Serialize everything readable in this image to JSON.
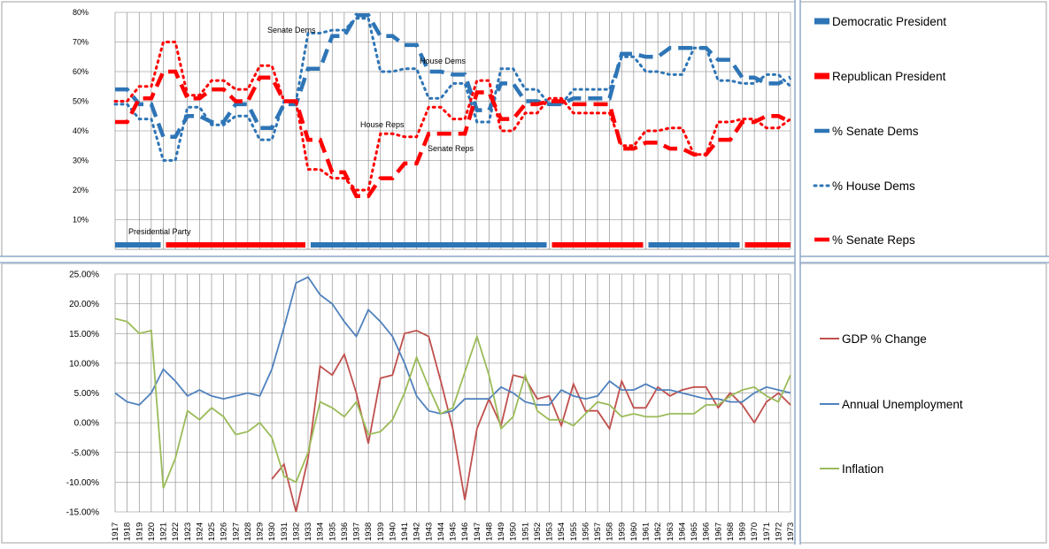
{
  "colors": {
    "dem": "#2E75B6",
    "rep": "#FF0000",
    "gdp": "#C0504D",
    "unemp": "#4F81BD",
    "infl": "#9BBB59",
    "grid": "#808080",
    "divider": "#8FA8C8"
  },
  "chart_data": [
    {
      "type": "line",
      "y_ticks": [
        "10%",
        "20%",
        "30%",
        "40%",
        "50%",
        "60%",
        "70%",
        "80%"
      ],
      "ylim": [
        0,
        0.8
      ],
      "grid": "on",
      "legend_position": "right",
      "legend": [
        {
          "label": "Democratic President",
          "style": "thick-solid",
          "color": "dem"
        },
        {
          "label": "Republican President",
          "style": "thick-solid",
          "color": "rep"
        },
        {
          "label": "% Senate Dems",
          "style": "dashed",
          "color": "dem"
        },
        {
          "label": "% House Dems",
          "style": "dotted",
          "color": "dem"
        },
        {
          "label": "% Senate Reps",
          "style": "dashed",
          "color": "rep"
        }
      ],
      "annotations": [
        "Senate Dems",
        "House Dems",
        "House Reps",
        "Senate Reps",
        "Presidential Party"
      ],
      "presidential_party": [
        {
          "party": "dem",
          "from": 1917,
          "to": 1920
        },
        {
          "party": "rep",
          "from": 1921,
          "to": 1932
        },
        {
          "party": "dem",
          "from": 1933,
          "to": 1952
        },
        {
          "party": "rep",
          "from": 1953,
          "to": 1960
        },
        {
          "party": "dem",
          "from": 1961,
          "to": 1968
        },
        {
          "party": "rep",
          "from": 1969,
          "to": 1973
        }
      ],
      "x": [
        1917,
        1918,
        1919,
        1920,
        1921,
        1922,
        1923,
        1924,
        1925,
        1926,
        1927,
        1928,
        1929,
        1930,
        1931,
        1932,
        1933,
        1934,
        1935,
        1936,
        1937,
        1938,
        1939,
        1940,
        1941,
        1942,
        1943,
        1944,
        1945,
        1946,
        1947,
        1948,
        1949,
        1950,
        1951,
        1952,
        1953,
        1954,
        1955,
        1956,
        1957,
        1958,
        1959,
        1960,
        1961,
        1962,
        1963,
        1964,
        1965,
        1966,
        1967,
        1968,
        1969,
        1970,
        1971,
        1972,
        1973
      ],
      "series": [
        {
          "name": "% Senate Dems",
          "color": "dem",
          "dash": "dashed",
          "values": [
            0.54,
            0.54,
            0.49,
            0.49,
            0.38,
            0.38,
            0.45,
            0.45,
            0.43,
            0.43,
            0.49,
            0.49,
            0.41,
            0.41,
            0.49,
            0.49,
            0.61,
            0.61,
            0.72,
            0.72,
            0.79,
            0.79,
            0.72,
            0.72,
            0.69,
            0.69,
            0.6,
            0.6,
            0.59,
            0.59,
            0.47,
            0.47,
            0.56,
            0.56,
            0.5,
            0.5,
            0.49,
            0.49,
            0.51,
            0.51,
            0.51,
            0.51,
            0.66,
            0.66,
            0.65,
            0.65,
            0.68,
            0.68,
            0.68,
            0.68,
            0.64,
            0.64,
            0.58,
            0.58,
            0.56,
            0.56,
            0.58
          ]
        },
        {
          "name": "% House Dems",
          "color": "dem",
          "dash": "dotted",
          "values": [
            0.49,
            0.49,
            0.44,
            0.44,
            0.3,
            0.3,
            0.48,
            0.48,
            0.42,
            0.42,
            0.45,
            0.45,
            0.37,
            0.37,
            0.5,
            0.5,
            0.73,
            0.73,
            0.74,
            0.74,
            0.78,
            0.78,
            0.6,
            0.6,
            0.61,
            0.61,
            0.51,
            0.51,
            0.56,
            0.56,
            0.43,
            0.43,
            0.61,
            0.61,
            0.54,
            0.54,
            0.49,
            0.49,
            0.54,
            0.54,
            0.54,
            0.54,
            0.65,
            0.65,
            0.6,
            0.6,
            0.59,
            0.59,
            0.68,
            0.68,
            0.57,
            0.57,
            0.56,
            0.56,
            0.59,
            0.59,
            0.55
          ]
        },
        {
          "name": "% Senate Reps",
          "color": "rep",
          "dash": "dashed",
          "values": [
            0.43,
            0.43,
            0.51,
            0.51,
            0.6,
            0.6,
            0.51,
            0.51,
            0.54,
            0.54,
            0.5,
            0.5,
            0.58,
            0.58,
            0.5,
            0.5,
            0.37,
            0.37,
            0.26,
            0.26,
            0.18,
            0.18,
            0.24,
            0.24,
            0.29,
            0.29,
            0.39,
            0.39,
            0.39,
            0.39,
            0.53,
            0.53,
            0.44,
            0.44,
            0.49,
            0.49,
            0.5,
            0.5,
            0.49,
            0.49,
            0.49,
            0.49,
            0.34,
            0.34,
            0.36,
            0.36,
            0.34,
            0.34,
            0.32,
            0.32,
            0.37,
            0.37,
            0.43,
            0.43,
            0.45,
            0.45,
            0.43
          ]
        },
        {
          "name": "House Reps",
          "color": "rep",
          "dash": "dotted",
          "values": [
            0.5,
            0.5,
            0.55,
            0.55,
            0.7,
            0.7,
            0.52,
            0.52,
            0.57,
            0.57,
            0.54,
            0.54,
            0.62,
            0.62,
            0.5,
            0.5,
            0.27,
            0.27,
            0.24,
            0.24,
            0.2,
            0.2,
            0.39,
            0.39,
            0.38,
            0.38,
            0.48,
            0.48,
            0.44,
            0.44,
            0.57,
            0.57,
            0.4,
            0.4,
            0.46,
            0.46,
            0.51,
            0.51,
            0.46,
            0.46,
            0.46,
            0.46,
            0.35,
            0.35,
            0.4,
            0.4,
            0.41,
            0.41,
            0.32,
            0.32,
            0.43,
            0.43,
            0.44,
            0.44,
            0.41,
            0.41,
            0.44
          ]
        }
      ]
    },
    {
      "type": "line",
      "y_ticks": [
        "25.00%",
        "20.00%",
        "15.00%",
        "10.00%",
        "5.00%",
        "0.00%",
        "-5.00%",
        "-10.00%",
        "-15.00%"
      ],
      "ylim": [
        -0.15,
        0.25
      ],
      "grid": "on",
      "legend_position": "right",
      "x": [
        1917,
        1918,
        1919,
        1920,
        1921,
        1922,
        1923,
        1924,
        1925,
        1926,
        1927,
        1928,
        1929,
        1930,
        1931,
        1932,
        1933,
        1934,
        1935,
        1936,
        1937,
        1938,
        1939,
        1940,
        1941,
        1942,
        1943,
        1944,
        1945,
        1946,
        1947,
        1948,
        1949,
        1950,
        1951,
        1952,
        1953,
        1954,
        1955,
        1956,
        1957,
        1958,
        1959,
        1960,
        1961,
        1962,
        1963,
        1964,
        1965,
        1966,
        1967,
        1968,
        1969,
        1970,
        1971,
        1972,
        1973
      ],
      "x_labels": [
        "1917",
        "1918",
        "1919",
        "1920",
        "1921",
        "1922",
        "1923",
        "1924",
        "1925",
        "1926",
        "1927",
        "1928",
        "1929",
        "1930",
        "1931",
        "1932",
        "1933",
        "1934",
        "1935",
        "1936",
        "1937",
        "1938",
        "1939",
        "1940",
        "1941",
        "1942",
        "1943",
        "1944",
        "1945",
        "1946",
        "1947",
        "1948",
        "1949",
        "1950",
        "1951",
        "1952",
        "1953",
        "1954",
        "1955",
        "1956",
        "1957",
        "1958",
        "1959",
        "1960",
        "1961",
        "1962",
        "1963",
        "1964",
        "1965",
        "1966",
        "1967",
        "1968",
        "1969",
        "1970",
        "1971",
        "1972",
        "1973"
      ],
      "series": [
        {
          "name": "GDP % Change",
          "color": "gdp",
          "values": [
            null,
            null,
            null,
            null,
            null,
            null,
            null,
            null,
            null,
            null,
            null,
            null,
            null,
            -0.095,
            -0.07,
            -0.15,
            -0.06,
            0.095,
            0.08,
            0.115,
            0.05,
            -0.035,
            0.075,
            0.08,
            0.15,
            0.155,
            0.145,
            0.07,
            -0.01,
            -0.13,
            -0.01,
            0.04,
            -0.005,
            0.08,
            0.075,
            0.04,
            0.045,
            -0.005,
            0.065,
            0.02,
            0.02,
            -0.01,
            0.07,
            0.025,
            0.025,
            0.06,
            0.045,
            0.055,
            0.06,
            0.06,
            0.025,
            0.05,
            0.03,
            0.0,
            0.035,
            0.05,
            0.03
          ]
        },
        {
          "name": "Annual Unemployment",
          "color": "unemp",
          "values": [
            0.05,
            0.035,
            0.03,
            0.05,
            0.09,
            0.07,
            0.045,
            0.055,
            0.045,
            0.04,
            0.045,
            0.05,
            0.045,
            0.09,
            0.16,
            0.235,
            0.245,
            0.215,
            0.2,
            0.17,
            0.145,
            0.19,
            0.17,
            0.145,
            0.1,
            0.045,
            0.02,
            0.015,
            0.02,
            0.04,
            0.04,
            0.04,
            0.06,
            0.05,
            0.035,
            0.03,
            0.03,
            0.055,
            0.045,
            0.04,
            0.045,
            0.07,
            0.055,
            0.055,
            0.065,
            0.055,
            0.055,
            0.05,
            0.045,
            0.04,
            0.04,
            0.035,
            0.035,
            0.05,
            0.06,
            0.055,
            0.05
          ]
        },
        {
          "name": "Inflation",
          "color": "infl",
          "values": [
            0.175,
            0.17,
            0.15,
            0.155,
            -0.11,
            -0.06,
            0.02,
            0.005,
            0.025,
            0.01,
            -0.02,
            -0.015,
            0.0,
            -0.025,
            -0.09,
            -0.1,
            -0.05,
            0.035,
            0.025,
            0.01,
            0.035,
            -0.02,
            -0.015,
            0.005,
            0.05,
            0.11,
            0.06,
            0.015,
            0.025,
            0.085,
            0.145,
            0.08,
            -0.01,
            0.01,
            0.08,
            0.02,
            0.005,
            0.005,
            -0.005,
            0.015,
            0.035,
            0.03,
            0.01,
            0.015,
            0.01,
            0.01,
            0.015,
            0.015,
            0.015,
            0.03,
            0.03,
            0.045,
            0.055,
            0.06,
            0.045,
            0.035,
            0.08
          ]
        }
      ]
    }
  ]
}
